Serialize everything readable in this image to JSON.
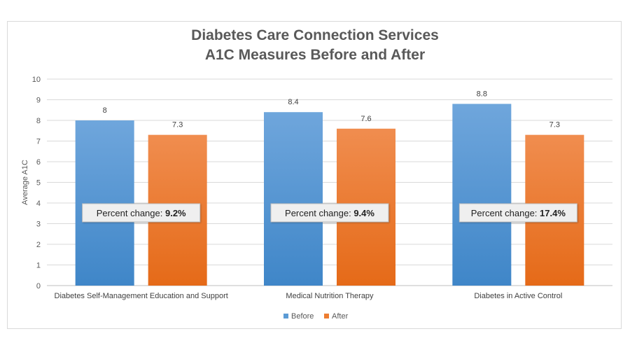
{
  "chart_data": {
    "type": "bar",
    "title_line1": "Diabetes Care Connection Services",
    "title_line2": "A1C Measures Before and After",
    "ylabel": "Average A1C",
    "xlabel": "",
    "ylim": [
      0,
      10
    ],
    "yticks": [
      0,
      1,
      2,
      3,
      4,
      5,
      6,
      7,
      8,
      9,
      10
    ],
    "categories": [
      "Diabetes Self-Management Education and Support",
      "Medical Nutrition Therapy",
      "Diabetes in Active Control"
    ],
    "series": [
      {
        "name": "Before",
        "values": [
          8,
          8.4,
          8.8
        ],
        "labels": [
          "8",
          "8.4",
          "8.8"
        ],
        "color": "#5b9bd5"
      },
      {
        "name": "After",
        "values": [
          7.3,
          7.6,
          7.3
        ],
        "labels": [
          "7.3",
          "7.6",
          "7.3"
        ],
        "color": "#ed7d31"
      }
    ],
    "annotations": [
      {
        "prefix": "Percent change: ",
        "value": "9.2%"
      },
      {
        "prefix": "Percent change: ",
        "value": "9.4%"
      },
      {
        "prefix": "Percent change: ",
        "value": "17.4%"
      }
    ],
    "grid": true,
    "legend_position": "bottom"
  }
}
